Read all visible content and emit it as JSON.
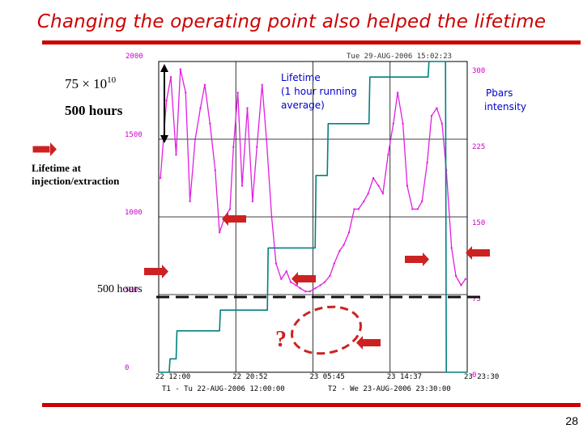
{
  "slide": {
    "title": "Changing the operating point also helped the lifetime",
    "page_number": "28"
  },
  "chart_data": {
    "type": "line",
    "header_left": "2000",
    "header_right": "Tue 29-AUG-2006 15:02:23",
    "left_ticks": [
      "2000",
      "1500",
      "1000",
      "500",
      "0"
    ],
    "right_ticks": [
      "300",
      "225",
      "150",
      "75",
      "0"
    ],
    "x_ticks": [
      "22 12:00",
      "22 20:52",
      "23 05:45",
      "23 14:37",
      "23 23:30"
    ],
    "t1_label": "T1 - Tu 22-AUG-2006 12:00:00",
    "t2_label": "T2 - We 23-AUG-2006 23:30:00",
    "x_range_hours": [
      0,
      35.5
    ],
    "left_ylim": [
      0,
      2000
    ],
    "right_ylim": [
      0,
      300
    ],
    "colors": {
      "lifetime": "#e020e0",
      "pbars": "#008080",
      "arrow": "#cc2222",
      "grid": "#000000"
    },
    "series": [
      {
        "name": "Lifetime (1 hour running average)",
        "axis": "left",
        "color": "#e020e0",
        "x": [
          0.2,
          0.9,
          1.4,
          2.0,
          2.5,
          3.1,
          3.6,
          4.2,
          4.8,
          5.3,
          5.9,
          6.5,
          7.0,
          7.6,
          8.2,
          8.6,
          9.1,
          9.6,
          10.2,
          10.8,
          11.3,
          11.9,
          12.4,
          13.0,
          13.5,
          14.1,
          14.7,
          15.2,
          15.8,
          16.3,
          16.9,
          17.4,
          18.0,
          18.6,
          19.1,
          19.7,
          20.2,
          20.8,
          21.3,
          21.9,
          22.5,
          23.0,
          23.6,
          24.1,
          24.7,
          25.3,
          25.8,
          26.4,
          27.0,
          27.5,
          28.1,
          28.6,
          29.2,
          29.8,
          30.3,
          30.9,
          31.4,
          32.0,
          32.6,
          33.1,
          33.7,
          34.2,
          34.8,
          35.3
        ],
        "y": [
          1250,
          1750,
          1900,
          1400,
          1950,
          1800,
          1100,
          1500,
          1700,
          1850,
          1600,
          1300,
          900,
          1000,
          1050,
          1450,
          1800,
          1200,
          1700,
          1100,
          1450,
          1850,
          1500,
          1000,
          700,
          600,
          650,
          580,
          560,
          540,
          520,
          520,
          540,
          560,
          580,
          620,
          700,
          780,
          820,
          900,
          1050,
          1050,
          1100,
          1150,
          1250,
          1200,
          1150,
          1400,
          1600,
          1800,
          1600,
          1200,
          1050,
          1050,
          1100,
          1350,
          1650,
          1700,
          1600,
          1300,
          800,
          620,
          560,
          600
        ]
      },
      {
        "name": "Pbars intensity",
        "axis": "right",
        "color": "#008080",
        "x": [
          0,
          1.2,
          1.3,
          2.0,
          2.1,
          7.0,
          7.1,
          12.5,
          12.6,
          18.0,
          18.1,
          19.4,
          19.5,
          24.2,
          24.3,
          31.0,
          31.1,
          33.0,
          33.1,
          35.5
        ],
        "y": [
          0,
          0,
          13,
          13,
          40,
          40,
          60,
          60,
          120,
          120,
          190,
          190,
          240,
          240,
          285,
          285,
          300,
          300,
          0,
          0
        ]
      }
    ],
    "annotations": {
      "lifetime_label": [
        "Lifetime",
        "(1 hour running",
        "average)"
      ],
      "pbars_label": [
        "Pbars",
        "intensity"
      ],
      "scale_value": "75 × 10",
      "scale_exponent": "10",
      "scale_hours": "500 hours",
      "injection_label": [
        "Lifetime at",
        "injection/extraction"
      ],
      "reference_line": "500 hours",
      "question_mark": "?"
    }
  }
}
